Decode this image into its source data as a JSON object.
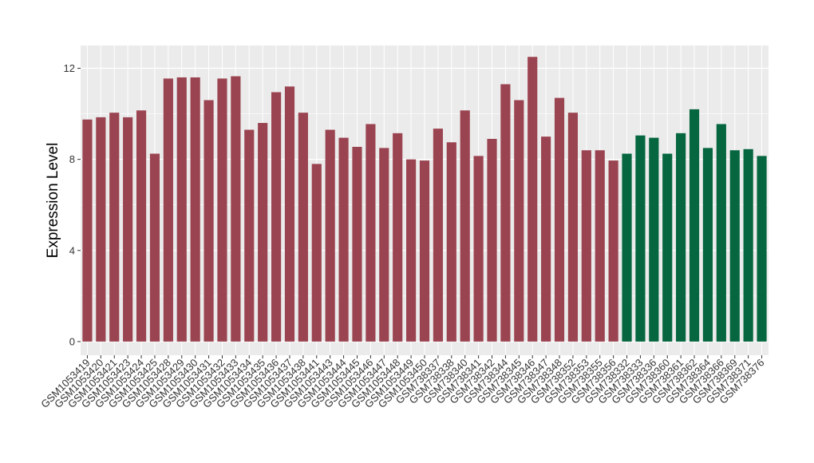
{
  "chart_data": {
    "type": "bar",
    "title": "",
    "xlabel": "",
    "ylabel": "Expression Level",
    "ylim": [
      -0.6,
      13.0
    ],
    "yticks": [
      0,
      4,
      8,
      12
    ],
    "grid": true,
    "legend": "none",
    "colors": {
      "panel": "#ebebeb",
      "gridline": "#ffffff",
      "group1": "#9b4451",
      "group2": "#05663f"
    },
    "categories": [
      "GSM1053419",
      "GSM1053420",
      "GSM1053421",
      "GSM1053423",
      "GSM1053424",
      "GSM1053425",
      "GSM1053428",
      "GSM1053429",
      "GSM1053430",
      "GSM1053431",
      "GSM1053432",
      "GSM1053433",
      "GSM1053434",
      "GSM1053435",
      "GSM1053436",
      "GSM1053437",
      "GSM1053438",
      "GSM1053441",
      "GSM1053443",
      "GSM1053444",
      "GSM1053445",
      "GSM1053446",
      "GSM1053447",
      "GSM1053448",
      "GSM1053449",
      "GSM1053450",
      "GSM738337",
      "GSM738338",
      "GSM738340",
      "GSM738341",
      "GSM738342",
      "GSM738344",
      "GSM738345",
      "GSM738346",
      "GSM738347",
      "GSM738348",
      "GSM738352",
      "GSM738353",
      "GSM738355",
      "GSM738356",
      "GSM738332",
      "GSM738333",
      "GSM738336",
      "GSM738360",
      "GSM738361",
      "GSM738362",
      "GSM738364",
      "GSM738366",
      "GSM738369",
      "GSM738371",
      "GSM738376"
    ],
    "values": [
      9.75,
      9.85,
      10.05,
      9.85,
      10.15,
      8.25,
      11.55,
      11.6,
      11.6,
      10.6,
      11.55,
      11.65,
      9.3,
      9.6,
      10.95,
      11.2,
      10.05,
      7.8,
      9.3,
      8.95,
      8.55,
      9.55,
      8.5,
      9.15,
      8.0,
      7.95,
      9.35,
      8.75,
      10.15,
      8.15,
      8.9,
      11.3,
      10.6,
      12.5,
      9.0,
      10.7,
      10.05,
      8.4,
      8.4,
      7.95,
      8.25,
      9.05,
      8.95,
      8.25,
      9.15,
      10.2,
      8.5,
      9.55,
      8.4,
      8.45,
      8.15
    ],
    "groups": [
      1,
      1,
      1,
      1,
      1,
      1,
      1,
      1,
      1,
      1,
      1,
      1,
      1,
      1,
      1,
      1,
      1,
      1,
      1,
      1,
      1,
      1,
      1,
      1,
      1,
      1,
      1,
      1,
      1,
      1,
      1,
      1,
      1,
      1,
      1,
      1,
      1,
      1,
      1,
      1,
      2,
      2,
      2,
      2,
      2,
      2,
      2,
      2,
      2,
      2,
      2
    ]
  }
}
